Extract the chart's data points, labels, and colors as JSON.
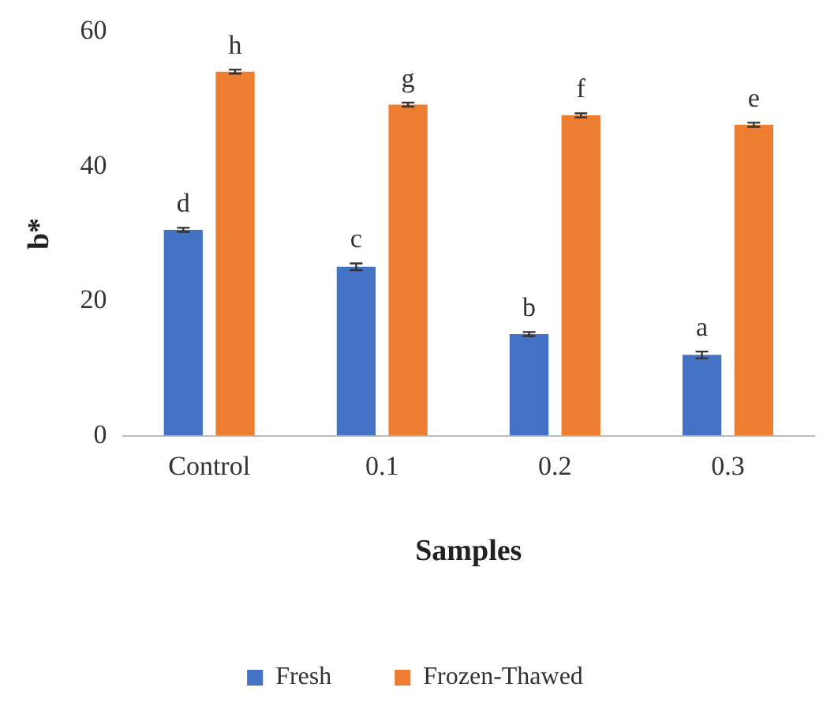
{
  "chart_data": {
    "type": "bar",
    "xlabel": "Samples",
    "ylabel": "b*",
    "categories": [
      "Control",
      "0.1",
      "0.2",
      "0.3"
    ],
    "series": [
      {
        "name": "Fresh",
        "color": "#4472c4",
        "values": [
          30.6,
          25.1,
          15.1,
          12.0
        ],
        "errors": [
          0.3,
          0.5,
          0.3,
          0.5
        ],
        "value_labels": [
          "d",
          "c",
          "b",
          "a"
        ]
      },
      {
        "name": "Frozen-Thawed",
        "color": "#ed7d31",
        "values": [
          54.1,
          49.2,
          47.6,
          46.2
        ],
        "errors": [
          0.3,
          0.3,
          0.3,
          0.3
        ],
        "value_labels": [
          "h",
          "g",
          "f",
          "e"
        ]
      }
    ],
    "ylim": [
      0,
      60
    ],
    "yticks": [
      0,
      20,
      40,
      60
    ],
    "grid": false,
    "legend": "bottom"
  }
}
